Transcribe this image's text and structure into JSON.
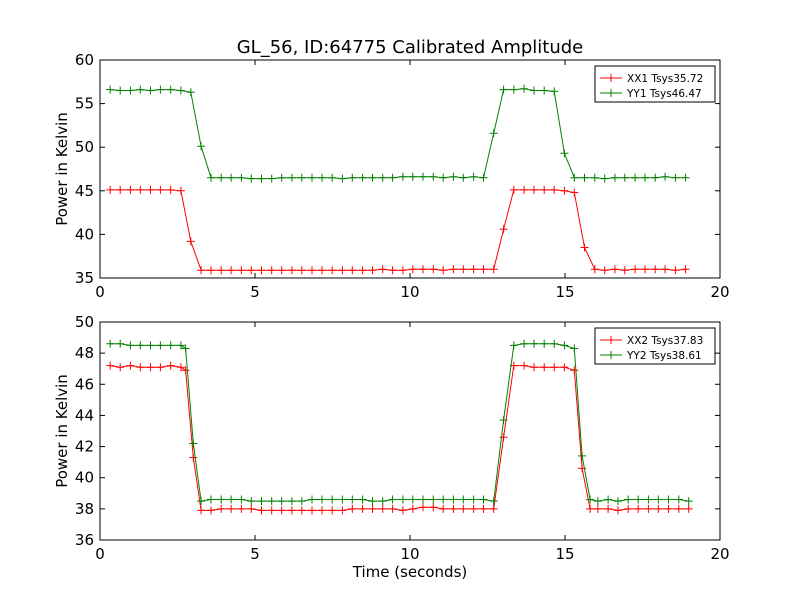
{
  "figure": {
    "title": "GL_56, ID:64775 Calibrated Amplitude",
    "colors": {
      "red": "#ff0000",
      "green": "#008000"
    }
  },
  "chart_data": [
    {
      "type": "line",
      "title": "GL_56, ID:64775 Calibrated Amplitude",
      "xlabel": "",
      "ylabel": "Power in Kelvin",
      "xlim": [
        0,
        20
      ],
      "ylim": [
        35,
        60
      ],
      "xticks": [
        "0",
        "5",
        "10",
        "15",
        "20"
      ],
      "yticks": [
        "35",
        "40",
        "45",
        "50",
        "55",
        "60"
      ],
      "legend_position": "top-right",
      "marker": "plus",
      "x": [
        0.33,
        0.65,
        0.98,
        1.3,
        1.63,
        1.95,
        2.28,
        2.61,
        2.93,
        3.26,
        3.58,
        3.91,
        4.23,
        4.56,
        4.88,
        5.21,
        5.54,
        5.86,
        6.19,
        6.51,
        6.84,
        7.16,
        7.49,
        7.82,
        8.14,
        8.47,
        8.79,
        9.12,
        9.44,
        9.77,
        10.09,
        10.42,
        10.75,
        11.07,
        11.4,
        11.72,
        12.05,
        12.37,
        12.7,
        13.02,
        13.35,
        13.68,
        14.0,
        14.33,
        14.65,
        14.98,
        15.3,
        15.63,
        15.96,
        16.28,
        16.61,
        16.93,
        17.26,
        17.58,
        17.91,
        18.23,
        18.56,
        18.89
      ],
      "series": [
        {
          "name": "XX1 Tsys35.72",
          "color": "#ff0000",
          "values": [
            45.1,
            45.1,
            45.1,
            45.1,
            45.1,
            45.1,
            45.1,
            45.0,
            39.2,
            35.9,
            35.9,
            35.9,
            35.9,
            35.9,
            35.9,
            35.9,
            35.9,
            35.9,
            35.9,
            35.9,
            35.9,
            35.9,
            35.9,
            35.9,
            35.9,
            35.9,
            35.9,
            36.0,
            35.9,
            35.9,
            36.0,
            36.0,
            36.0,
            35.9,
            36.0,
            36.0,
            36.0,
            36.0,
            36.0,
            40.6,
            45.1,
            45.1,
            45.1,
            45.1,
            45.1,
            45.0,
            44.8,
            38.5,
            36.0,
            35.9,
            36.0,
            35.9,
            36.0,
            36.0,
            36.0,
            36.0,
            35.9,
            36.0
          ]
        },
        {
          "name": "YY1 Tsys46.47",
          "color": "#008000",
          "values": [
            56.6,
            56.5,
            56.5,
            56.6,
            56.5,
            56.6,
            56.6,
            56.5,
            56.3,
            50.1,
            46.5,
            46.5,
            46.5,
            46.5,
            46.4,
            46.4,
            46.4,
            46.5,
            46.5,
            46.5,
            46.5,
            46.5,
            46.5,
            46.4,
            46.5,
            46.5,
            46.5,
            46.5,
            46.5,
            46.6,
            46.6,
            46.6,
            46.6,
            46.5,
            46.6,
            46.5,
            46.6,
            46.5,
            51.6,
            56.6,
            56.6,
            56.7,
            56.5,
            56.5,
            56.4,
            49.3,
            46.5,
            46.5,
            46.5,
            46.4,
            46.5,
            46.5,
            46.5,
            46.5,
            46.5,
            46.6,
            46.5,
            46.5
          ],
          "x_shift_note": ""
        }
      ]
    },
    {
      "type": "line",
      "title": "",
      "xlabel": "Time (seconds)",
      "ylabel": "Power in Kelvin",
      "xlim": [
        0,
        20
      ],
      "ylim": [
        36,
        50
      ],
      "xticks": [
        "0",
        "5",
        "10",
        "15",
        "20"
      ],
      "yticks": [
        "36",
        "38",
        "40",
        "42",
        "44",
        "46",
        "48",
        "50"
      ],
      "legend_position": "top-right",
      "marker": "plus",
      "x": [
        0.33,
        0.65,
        0.98,
        1.3,
        1.63,
        1.95,
        2.28,
        2.61,
        2.76,
        3.01,
        3.26,
        3.58,
        3.91,
        4.23,
        4.56,
        4.88,
        5.21,
        5.54,
        5.86,
        6.19,
        6.51,
        6.84,
        7.16,
        7.49,
        7.82,
        8.14,
        8.47,
        8.79,
        9.12,
        9.44,
        9.77,
        10.09,
        10.42,
        10.75,
        11.07,
        11.4,
        11.72,
        12.05,
        12.37,
        12.7,
        13.02,
        13.35,
        13.68,
        14.0,
        14.33,
        14.65,
        14.98,
        15.3,
        15.55,
        15.81,
        16.06,
        16.39,
        16.71,
        17.04,
        17.36,
        17.69,
        18.01,
        18.34,
        18.67,
        18.99
      ],
      "series": [
        {
          "name": "XX2 Tsys37.83",
          "color": "#ff0000",
          "values": [
            47.2,
            47.1,
            47.2,
            47.1,
            47.1,
            47.1,
            47.2,
            47.1,
            46.9,
            41.3,
            37.9,
            37.9,
            38.0,
            38.0,
            38.0,
            38.0,
            37.9,
            37.9,
            37.9,
            37.9,
            37.9,
            37.9,
            37.9,
            37.9,
            37.9,
            38.0,
            38.0,
            38.0,
            38.0,
            38.0,
            37.9,
            38.0,
            38.1,
            38.1,
            38.0,
            38.0,
            38.0,
            38.0,
            38.0,
            38.0,
            42.6,
            47.2,
            47.2,
            47.1,
            47.1,
            47.1,
            47.1,
            46.9,
            40.6,
            38.0,
            38.0,
            38.0,
            37.9,
            38.0,
            38.0,
            38.0,
            38.0,
            38.0,
            38.0,
            38.0
          ]
        },
        {
          "name": "YY2 Tsys38.61",
          "color": "#008000",
          "values": [
            48.6,
            48.6,
            48.5,
            48.5,
            48.5,
            48.5,
            48.5,
            48.5,
            48.3,
            42.2,
            38.5,
            38.6,
            38.6,
            38.6,
            38.6,
            38.5,
            38.5,
            38.5,
            38.5,
            38.5,
            38.5,
            38.6,
            38.6,
            38.6,
            38.6,
            38.6,
            38.6,
            38.5,
            38.5,
            38.6,
            38.6,
            38.6,
            38.6,
            38.6,
            38.6,
            38.6,
            38.6,
            38.6,
            38.6,
            38.5,
            43.7,
            48.5,
            48.6,
            48.6,
            48.6,
            48.6,
            48.5,
            48.3,
            41.4,
            38.6,
            38.5,
            38.6,
            38.5,
            38.6,
            38.6,
            38.6,
            38.6,
            38.6,
            38.6,
            38.5
          ]
        }
      ]
    }
  ]
}
